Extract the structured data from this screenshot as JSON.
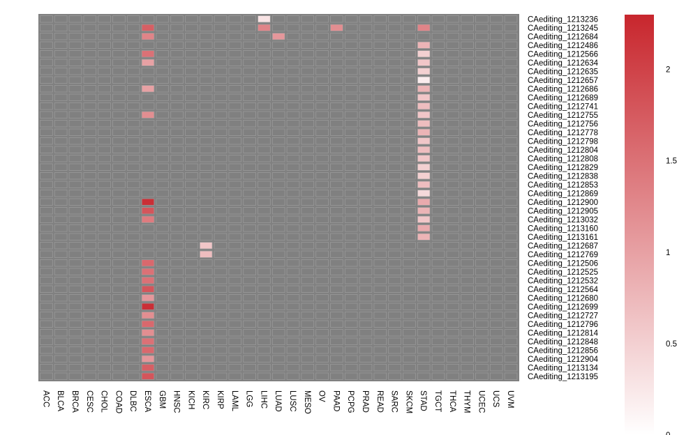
{
  "chart_data": {
    "type": "heatmap",
    "title": "",
    "xlabel": "",
    "ylabel": "",
    "columns": [
      "ACC",
      "BLCA",
      "BRCA",
      "CESC",
      "CHOL",
      "COAD",
      "DLBC",
      "ESCA",
      "GBM",
      "HNSC",
      "KICH",
      "KIRC",
      "KIRP",
      "LAML",
      "LGG",
      "LIHC",
      "LUAD",
      "LUSC",
      "MESO",
      "OV",
      "PAAD",
      "PCPG",
      "PRAD",
      "READ",
      "SARC",
      "SKCM",
      "STAD",
      "TGCT",
      "THCA",
      "THYM",
      "UCEC",
      "UCS",
      "UVM"
    ],
    "rows": [
      "CAediting_1213236",
      "CAediting_1213245",
      "CAediting_1212684",
      "CAediting_1212486",
      "CAediting_1212566",
      "CAediting_1212634",
      "CAediting_1212635",
      "CAediting_1212657",
      "CAediting_1212686",
      "CAediting_1212689",
      "CAediting_1212741",
      "CAediting_1212755",
      "CAediting_1212756",
      "CAediting_1212778",
      "CAediting_1212798",
      "CAediting_1212804",
      "CAediting_1212808",
      "CAediting_1212829",
      "CAediting_1212838",
      "CAediting_1212853",
      "CAediting_1212869",
      "CAediting_1212900",
      "CAediting_1212905",
      "CAediting_1213032",
      "CAediting_1213160",
      "CAediting_1213161",
      "CAediting_1212687",
      "CAediting_1212769",
      "CAediting_1212506",
      "CAediting_1212525",
      "CAediting_1212532",
      "CAediting_1212564",
      "CAediting_1212680",
      "CAediting_1212699",
      "CAediting_1212727",
      "CAediting_1212796",
      "CAediting_1212814",
      "CAediting_1212848",
      "CAediting_1212856",
      "CAediting_1212904",
      "CAediting_1213134",
      "CAediting_1213195"
    ],
    "cells": [
      {
        "row": "CAediting_1213236",
        "col": "LIHC",
        "value": 0.3
      },
      {
        "row": "CAediting_1213245",
        "col": "ESCA",
        "value": 1.7
      },
      {
        "row": "CAediting_1213245",
        "col": "LIHC",
        "value": 1.3
      },
      {
        "row": "CAediting_1213245",
        "col": "PAAD",
        "value": 1.2
      },
      {
        "row": "CAediting_1213245",
        "col": "STAD",
        "value": 1.3
      },
      {
        "row": "CAediting_1212684",
        "col": "ESCA",
        "value": 1.3
      },
      {
        "row": "CAediting_1212684",
        "col": "LUAD",
        "value": 1.1
      },
      {
        "row": "CAediting_1212486",
        "col": "STAD",
        "value": 0.8
      },
      {
        "row": "CAediting_1212566",
        "col": "ESCA",
        "value": 1.5
      },
      {
        "row": "CAediting_1212566",
        "col": "STAD",
        "value": 0.5
      },
      {
        "row": "CAediting_1212634",
        "col": "ESCA",
        "value": 1.0
      },
      {
        "row": "CAediting_1212634",
        "col": "STAD",
        "value": 0.6
      },
      {
        "row": "CAediting_1212635",
        "col": "STAD",
        "value": 0.5
      },
      {
        "row": "CAediting_1212657",
        "col": "STAD",
        "value": 0.2
      },
      {
        "row": "CAediting_1212686",
        "col": "ESCA",
        "value": 1.0
      },
      {
        "row": "CAediting_1212686",
        "col": "STAD",
        "value": 0.8
      },
      {
        "row": "CAediting_1212689",
        "col": "STAD",
        "value": 0.6
      },
      {
        "row": "CAediting_1212741",
        "col": "STAD",
        "value": 0.7
      },
      {
        "row": "CAediting_1212755",
        "col": "ESCA",
        "value": 1.2
      },
      {
        "row": "CAediting_1212755",
        "col": "STAD",
        "value": 0.6
      },
      {
        "row": "CAediting_1212756",
        "col": "STAD",
        "value": 0.7
      },
      {
        "row": "CAediting_1212778",
        "col": "STAD",
        "value": 0.8
      },
      {
        "row": "CAediting_1212798",
        "col": "STAD",
        "value": 0.6
      },
      {
        "row": "CAediting_1212804",
        "col": "STAD",
        "value": 0.7
      },
      {
        "row": "CAediting_1212808",
        "col": "STAD",
        "value": 0.6
      },
      {
        "row": "CAediting_1212829",
        "col": "STAD",
        "value": 0.5
      },
      {
        "row": "CAediting_1212838",
        "col": "STAD",
        "value": 0.5
      },
      {
        "row": "CAediting_1212853",
        "col": "STAD",
        "value": 0.7
      },
      {
        "row": "CAediting_1212869",
        "col": "STAD",
        "value": 0.4
      },
      {
        "row": "CAediting_1212900",
        "col": "ESCA",
        "value": 2.2
      },
      {
        "row": "CAediting_1212900",
        "col": "STAD",
        "value": 0.9
      },
      {
        "row": "CAediting_1212905",
        "col": "ESCA",
        "value": 1.8
      },
      {
        "row": "CAediting_1212905",
        "col": "STAD",
        "value": 0.8
      },
      {
        "row": "CAediting_1213032",
        "col": "ESCA",
        "value": 1.4
      },
      {
        "row": "CAediting_1213032",
        "col": "STAD",
        "value": 0.6
      },
      {
        "row": "CAediting_1213160",
        "col": "STAD",
        "value": 0.9
      },
      {
        "row": "CAediting_1213161",
        "col": "STAD",
        "value": 0.8
      },
      {
        "row": "CAediting_1212687",
        "col": "KIRC",
        "value": 0.6
      },
      {
        "row": "CAediting_1212769",
        "col": "KIRC",
        "value": 0.7
      },
      {
        "row": "CAediting_1212506",
        "col": "ESCA",
        "value": 1.6
      },
      {
        "row": "CAediting_1212525",
        "col": "ESCA",
        "value": 1.5
      },
      {
        "row": "CAediting_1212532",
        "col": "ESCA",
        "value": 1.5
      },
      {
        "row": "CAediting_1212564",
        "col": "ESCA",
        "value": 1.8
      },
      {
        "row": "CAediting_1212680",
        "col": "ESCA",
        "value": 1.1
      },
      {
        "row": "CAediting_1212699",
        "col": "ESCA",
        "value": 2.2
      },
      {
        "row": "CAediting_1212727",
        "col": "ESCA",
        "value": 1.2
      },
      {
        "row": "CAediting_1212796",
        "col": "ESCA",
        "value": 1.6
      },
      {
        "row": "CAediting_1212814",
        "col": "ESCA",
        "value": 1.2
      },
      {
        "row": "CAediting_1212848",
        "col": "ESCA",
        "value": 1.5
      },
      {
        "row": "CAediting_1212856",
        "col": "ESCA",
        "value": 1.6
      },
      {
        "row": "CAediting_1212904",
        "col": "ESCA",
        "value": 1.1
      },
      {
        "row": "CAediting_1213134",
        "col": "ESCA",
        "value": 1.7
      },
      {
        "row": "CAediting_1213195",
        "col": "ESCA",
        "value": 1.8
      }
    ],
    "colorbar": {
      "min": 0,
      "max": 2.3,
      "ticks": [
        0,
        0.5,
        1,
        1.5,
        2
      ],
      "tick_labels": [
        "0",
        "0.5",
        "1",
        "1.5",
        "2"
      ],
      "low_color": "#ffffff",
      "high_color": "#c8262d"
    },
    "na_color": "#808080",
    "cell_border_color": "#999999"
  }
}
